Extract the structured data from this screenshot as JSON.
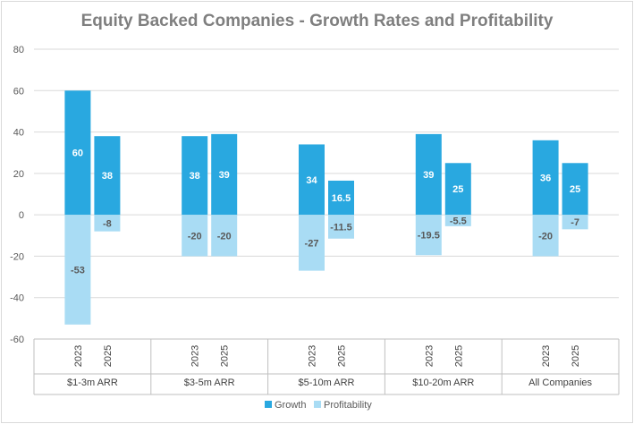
{
  "chart_data": {
    "type": "bar",
    "title": "Equity Backed Companies - Growth Rates and Profitability",
    "xlabel": "",
    "ylabel": "",
    "ylim": [
      -60,
      80
    ],
    "yticks": [
      -60,
      -40,
      -20,
      0,
      20,
      40,
      60,
      80
    ],
    "grid": true,
    "legend_position": "bottom",
    "groups": [
      "$1-3m ARR",
      "$3-5m ARR",
      "$5-10m ARR",
      "$10-20m ARR",
      "All Companies"
    ],
    "years": [
      "2023",
      "2025"
    ],
    "series": [
      {
        "name": "Growth",
        "color": "#29a8e0",
        "label_color": "#ffffff",
        "values": [
          [
            60,
            38
          ],
          [
            38,
            39
          ],
          [
            34,
            16.5
          ],
          [
            39,
            25
          ],
          [
            36,
            25
          ]
        ]
      },
      {
        "name": "Profitability",
        "color": "#a9dcf4",
        "label_color": "#595959",
        "values": [
          [
            -53,
            -8
          ],
          [
            -20,
            -20
          ],
          [
            -27,
            -11.5
          ],
          [
            -19.5,
            -5.5
          ],
          [
            -20,
            -7
          ]
        ]
      }
    ]
  }
}
